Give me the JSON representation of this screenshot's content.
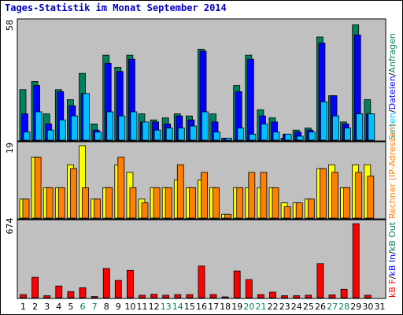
{
  "chart_data": {
    "type": "bar",
    "title": "Tages-Statistik im Monat September 2014",
    "categories": [
      "1",
      "2",
      "3",
      "4",
      "5",
      "6",
      "7",
      "8",
      "9",
      "10",
      "11",
      "12",
      "13",
      "14",
      "15",
      "16",
      "17",
      "18",
      "19",
      "20",
      "21",
      "22",
      "23",
      "24",
      "25",
      "26",
      "27",
      "28",
      "29",
      "30",
      "31"
    ],
    "weekend_days": [
      "6",
      "7",
      "13",
      "14",
      "20",
      "21",
      "27",
      "28"
    ],
    "legend": {
      "anfragen": "Anfragen",
      "dateien": "Dateien",
      "seiten": "Seiten",
      "rechner": "Rechner (IP-Adressen)",
      "kb_f": "kB F",
      "kb_in": "kB In",
      "kb_out": "kB Out",
      "sep": "/"
    },
    "panels": [
      {
        "id": "top",
        "max_label": "58",
        "ymax": 58,
        "series": [
          {
            "name": "Anfragen",
            "values": [
              25,
              29,
              13,
              25,
              20,
              33,
              8,
              42,
              36,
              42,
              13,
              10,
              11,
              13,
              12,
              45,
              13,
              1,
              27,
              42,
              15,
              11,
              1,
              5,
              6,
              51,
              22,
              9,
              57,
              20,
              0
            ]
          },
          {
            "name": "Dateien",
            "values": [
              13,
              27,
              8,
              24,
              17,
              23,
              5,
              38,
              34,
              40,
              9,
              9,
              8,
              12,
              10,
              44,
              9,
              1,
              24,
              40,
              12,
              9,
              3,
              4,
              5,
              48,
              22,
              8,
              52,
              13,
              0
            ]
          },
          {
            "name": "Seiten",
            "values": [
              4,
              14,
              5,
              10,
              12,
              23,
              4,
              14,
              12,
              14,
              9,
              5,
              6,
              6,
              7,
              14,
              4,
              1,
              6,
              3,
              8,
              4,
              3,
              2,
              4,
              19,
              12,
              6,
              13,
              13,
              0
            ]
          }
        ]
      },
      {
        "id": "middle",
        "max_label": "19",
        "ymax": 19,
        "series": [
          {
            "name": "Besuche",
            "values": [
              5,
              16,
              8,
              8,
              14,
              19,
              5,
              8,
              14,
              12,
              5,
              8,
              8,
              10,
              8,
              10,
              8,
              1,
              8,
              8,
              8,
              8,
              4,
              4,
              5,
              13,
              14,
              8,
              14,
              14,
              0
            ]
          },
          {
            "name": "Rechner (IP-Adressen)",
            "values": [
              5,
              16,
              8,
              8,
              13,
              8,
              5,
              8,
              16,
              8,
              4,
              8,
              8,
              14,
              8,
              12,
              8,
              1,
              8,
              12,
              12,
              8,
              3,
              4,
              5,
              13,
              12,
              8,
              12,
              11,
              0
            ]
          }
        ]
      },
      {
        "id": "bottom",
        "max_label": "674",
        "ymax": 674,
        "series": [
          {
            "name": "kB F",
            "values": [
              28,
              186,
              18,
              106,
              55,
              90,
              10,
              266,
              157,
              249,
              22,
              31,
              22,
              28,
              28,
              288,
              29,
              5,
              243,
              165,
              28,
              50,
              18,
              18,
              22,
              310,
              26,
              77,
              674,
              22,
              0
            ]
          }
        ]
      }
    ],
    "colors": {
      "anfragen": "#00805c",
      "dateien": "#0000ff",
      "seiten": "#00c0ff",
      "besuche": "#ffff00",
      "rechner": "#ff8000",
      "kb": "#ff0000",
      "plot_bg": "#c0c0c0",
      "title": "#0000c0",
      "weekend_label": "#00805c"
    }
  }
}
